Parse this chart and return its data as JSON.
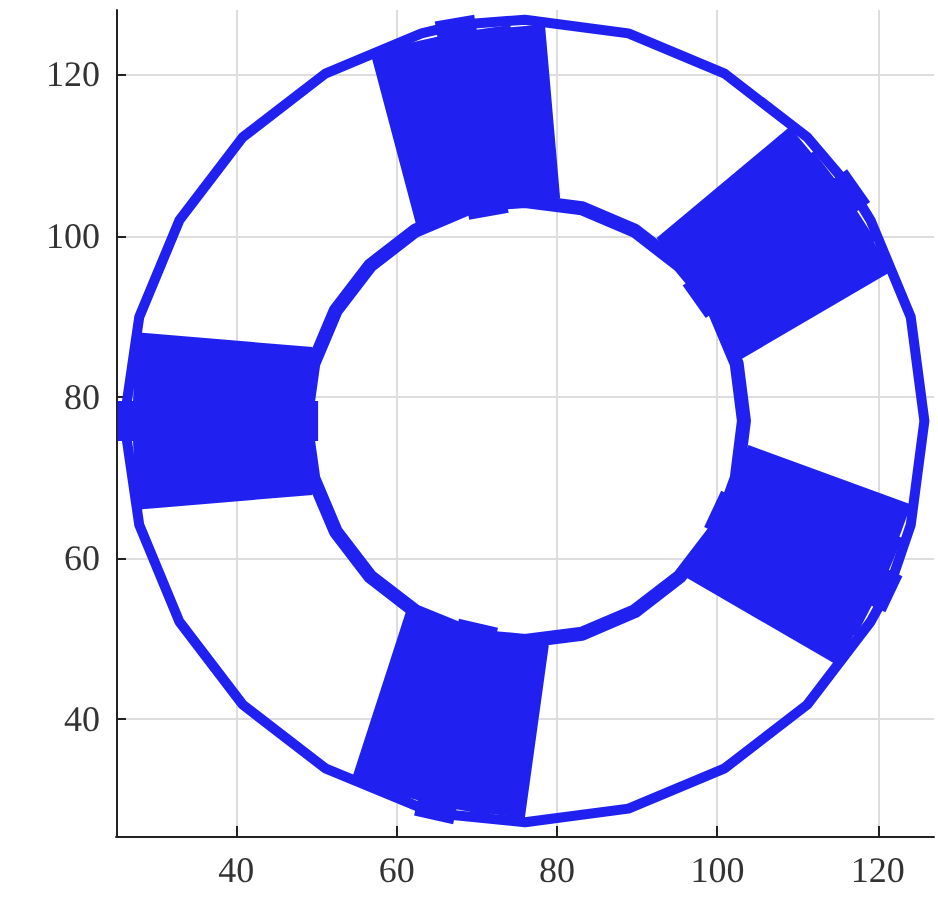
{
  "chart_data": {
    "type": "line",
    "xlim": [
      25,
      127
    ],
    "ylim": [
      25.5,
      128
    ],
    "xticks": [
      40,
      60,
      80,
      100,
      120
    ],
    "yticks": [
      40,
      60,
      80,
      100,
      120
    ],
    "grid": true,
    "marker": "none",
    "line_style": "solid",
    "series": [
      {
        "color": "#2020f0",
        "x": [
          68.2,
          76,
          88.9,
          100.9,
          111.2,
          116.0
        ],
        "values": [
          126.2,
          126.8,
          125.1,
          120.1,
          112.2,
          106.6
        ]
      },
      {
        "color": "#2020f0",
        "x": [
          26.2,
          27.9,
          32.9,
          40.8,
          51.1,
          63.1,
          66.1
        ],
        "values": [
          78.3,
          89.9,
          101.9,
          112.2,
          120.1,
          125.1,
          125.8
        ]
      },
      {
        "color": "#2020f0",
        "x": [
          26.2,
          27.9,
          32.9,
          40.8,
          51.1,
          63.5
        ],
        "values": [
          75.7,
          64.1,
          52.1,
          41.8,
          33.9,
          28.8
        ]
      },
      {
        "color": "#2020f0",
        "x": [
          66.1,
          76,
          88.9,
          100.9,
          111.2,
          119.1,
          120.6
        ],
        "values": [
          28.2,
          27.2,
          28.9,
          33.9,
          41.8,
          52.1,
          54.8
        ]
      },
      {
        "color": "#2020f0",
        "x": [
          121.7,
          124.1,
          125.8,
          124.1,
          119.1,
          117.5
        ],
        "values": [
          57.1,
          64.1,
          77,
          89.9,
          101.9,
          104.5
        ]
      },
      {
        "color": "#2020f0",
        "x": [
          71.7,
          76,
          83.1,
          89.7,
          95.3,
          97.9
        ],
        "values": [
          104.0,
          104.3,
          103.4,
          100.6,
          96.3,
          93.2
        ]
      },
      {
        "color": "#2020f0",
        "x": [
          48.7,
          49.6,
          52.4,
          56.7,
          62.3,
          68.9,
          70.6
        ],
        "values": [
          77.7,
          84.1,
          90.7,
          96.3,
          100.6,
          103.4,
          103.8
        ]
      },
      {
        "color": "#2020f0",
        "x": [
          48.7,
          49.6,
          52.4,
          56.7,
          62.3,
          69.2
        ],
        "values": [
          76.3,
          69.9,
          63.3,
          57.7,
          53.4,
          50.6
        ]
      },
      {
        "color": "#2020f0",
        "x": [
          70.6,
          76,
          83.1,
          89.7,
          95.3,
          99.6,
          100.4
        ],
        "values": [
          50.2,
          49.7,
          50.6,
          53.4,
          57.7,
          63.3,
          64.8
        ]
      },
      {
        "color": "#2020f0",
        "x": [
          101.0,
          102.4,
          103.3,
          102.4,
          99.6,
          98.8
        ],
        "values": [
          66.1,
          69.9,
          77,
          84.1,
          90.7,
          92.1
        ]
      },
      {
        "color": "#2020f0",
        "x": [
          76,
          77.9
        ],
        "values": [
          126,
          104.4
        ]
      },
      {
        "color": "#2020f0",
        "x": [
          71.7,
          74.6
        ],
        "values": [
          125.8,
          104.5
        ]
      },
      {
        "color": "#2020f0",
        "x": [
          67.2,
          71.5
        ],
        "values": [
          127.0,
          102.4
        ]
      },
      {
        "color": "#2020f0",
        "x": [
          63.3,
          68.0
        ],
        "values": [
          124.3,
          103.3
        ]
      },
      {
        "color": "#2020f0",
        "x": [
          59.2,
          64.8
        ],
        "values": [
          123.1,
          102.1
        ]
      },
      {
        "color": "#2020f0",
        "x": [
          27.7,
          49.3
        ],
        "values": [
          85.5,
          83.7
        ]
      },
      {
        "color": "#2020f0",
        "x": [
          27.2,
          48.7
        ],
        "values": [
          81.3,
          80.4
        ]
      },
      {
        "color": "#2020f0",
        "x": [
          25.2,
          50.2
        ],
        "values": [
          77,
          77
        ]
      },
      {
        "color": "#2020f0",
        "x": [
          27.2,
          48.7
        ],
        "values": [
          72.7,
          73.6
        ]
      },
      {
        "color": "#2020f0",
        "x": [
          27.7,
          49.3
        ],
        "values": [
          68.5,
          70.3
        ]
      },
      {
        "color": "#2020f0",
        "x": [
          56.8,
          63.5
        ],
        "values": [
          31.9,
          52.5
        ]
      },
      {
        "color": "#2020f0",
        "x": [
          60.9,
          66.6
        ],
        "values": [
          30.4,
          51.2
        ]
      },
      {
        "color": "#2020f0",
        "x": [
          64.6,
          70.2
        ],
        "values": [
          27.5,
          51.9
        ]
      },
      {
        "color": "#2020f0",
        "x": [
          69.2,
          73.1
        ],
        "values": [
          28.5,
          49.6
        ]
      },
      {
        "color": "#2020f0",
        "x": [
          73.5,
          76.5
        ],
        "values": [
          28.0,
          49.5
        ]
      },
      {
        "color": "#2020f0",
        "x": [
          97.4,
          116.1
        ],
        "values": [
          59.7,
          48.9
        ]
      },
      {
        "color": "#2020f0",
        "x": [
          99.3,
          118.4
        ],
        "values": [
          62.4,
          52.5
        ]
      },
      {
        "color": "#2020f0",
        "x": [
          99.4,
          122.0
        ],
        "values": [
          66.1,
          55.5
        ]
      },
      {
        "color": "#2020f0",
        "x": [
          102.2,
          122.1
        ],
        "values": [
          68.5,
          60.2
        ]
      },
      {
        "color": "#2020f0",
        "x": [
          103.0,
          123.3
        ],
        "values": [
          71.7,
          64.3
        ]
      },
      {
        "color": "#2020f0",
        "x": [
          101.7,
          120.4
        ],
        "values": [
          86.8,
          97.7
        ]
      },
      {
        "color": "#2020f0",
        "x": [
          100.3,
          118.4
        ],
        "values": [
          89.9,
          101.5
        ]
      },
      {
        "color": "#2020f0",
        "x": [
          97.1,
          117.6
        ],
        "values": [
          91.8,
          106.2
        ]
      },
      {
        "color": "#2020f0",
        "x": [
          96.4,
          113.5
        ],
        "values": [
          95.4,
          108.5
        ]
      },
      {
        "color": "#2020f0",
        "x": [
          94.0,
          110.6
        ],
        "values": [
          97.8,
          111.6
        ]
      }
    ]
  }
}
